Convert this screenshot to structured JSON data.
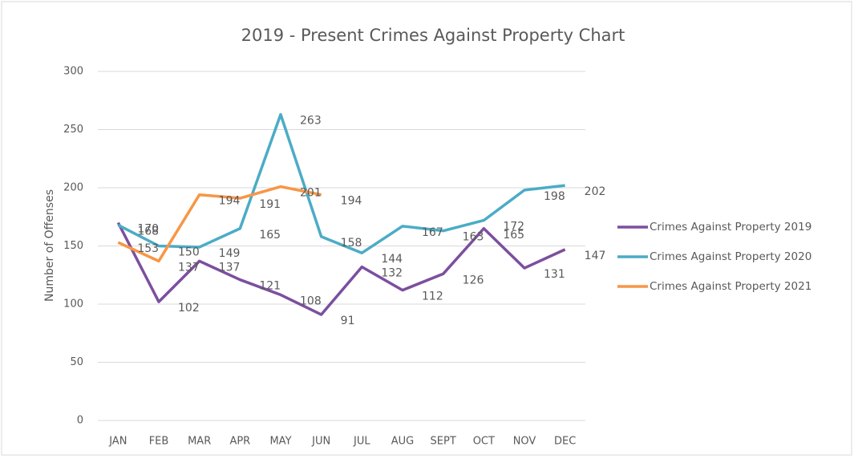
{
  "chart_data": {
    "type": "line",
    "title": "2019 - Present Crimes Against Property Chart",
    "y_label": "Number of Offenses",
    "categories": [
      "JAN",
      "FEB",
      "MAR",
      "APR",
      "MAY",
      "JUN",
      "JUL",
      "AUG",
      "SEPT",
      "OCT",
      "NOV",
      "DEC"
    ],
    "series": [
      {
        "name": "Crimes Against Property 2019",
        "color": "#7b4f9e",
        "values": [
          170,
          102,
          137,
          121,
          108,
          91,
          132,
          112,
          126,
          165,
          131,
          147
        ]
      },
      {
        "name": "Crimes Against Property 2020",
        "color": "#4bacc6",
        "values": [
          168,
          150,
          149,
          165,
          263,
          158,
          144,
          167,
          163,
          172,
          198,
          202
        ]
      },
      {
        "name": "Crimes Against Property 2021",
        "color": "#f79646",
        "values": [
          153,
          137,
          194,
          191,
          201,
          194,
          null,
          null,
          null,
          null,
          null,
          null
        ]
      }
    ],
    "ylim": [
      0,
      300
    ],
    "yticks": [
      0,
      50,
      100,
      150,
      200,
      250,
      300
    ],
    "grid": true,
    "legend": "right"
  }
}
